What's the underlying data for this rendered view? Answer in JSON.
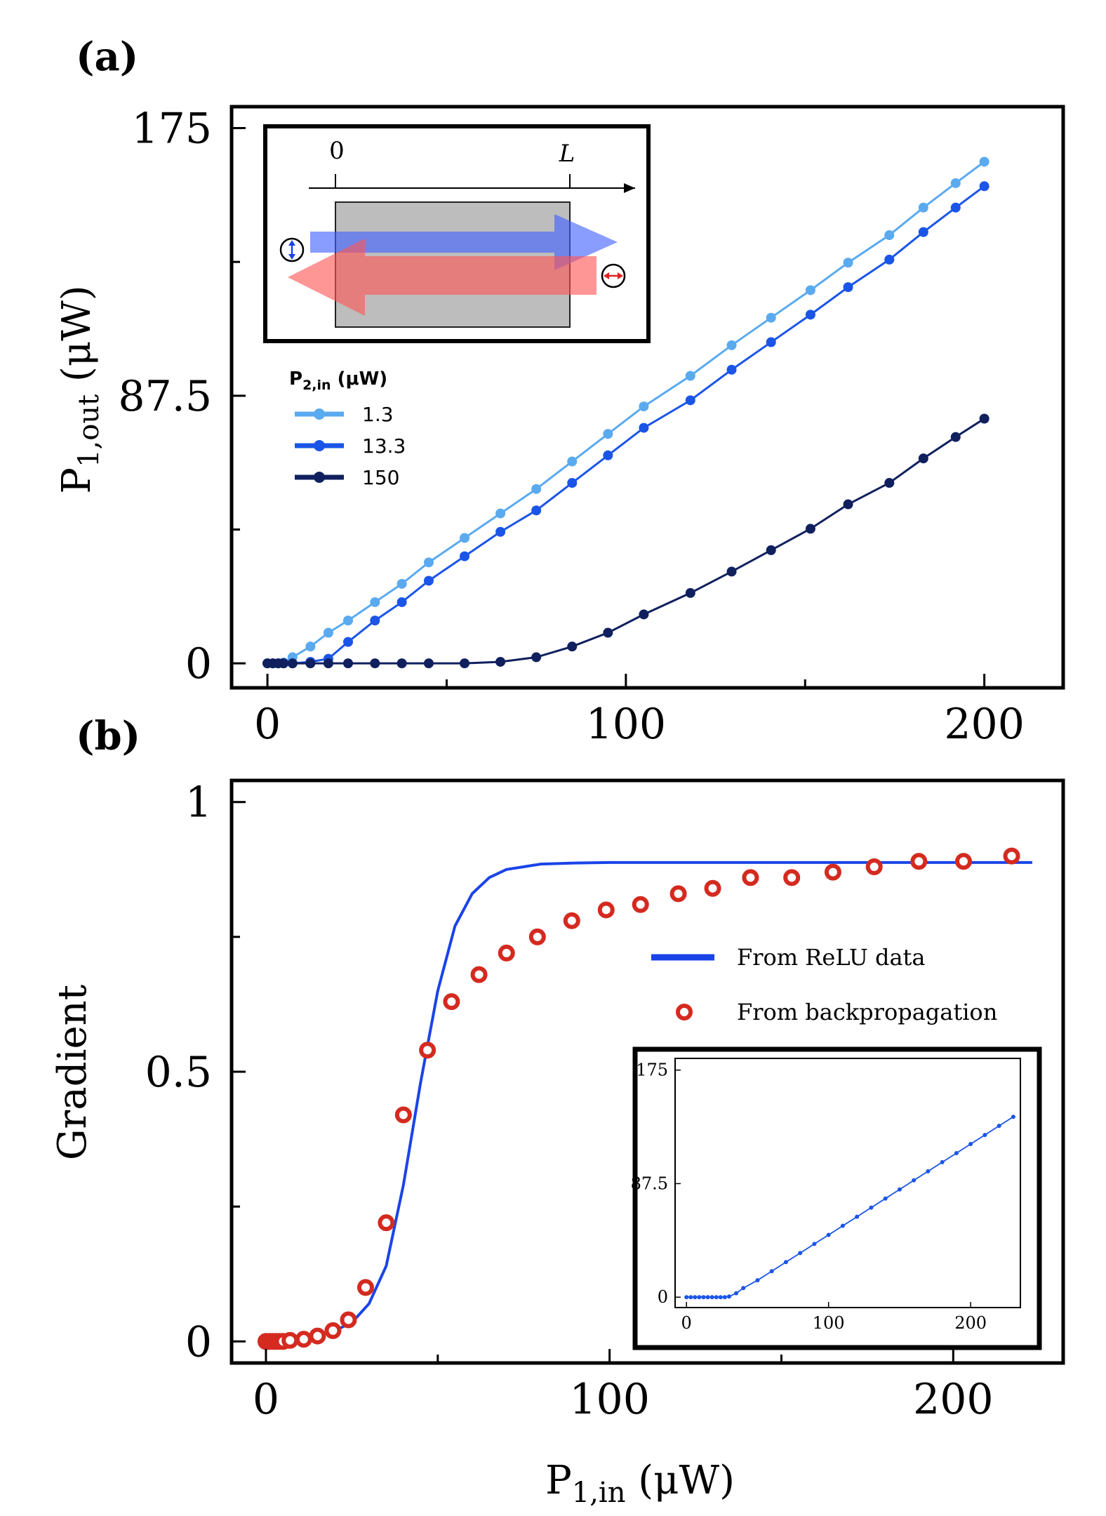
{
  "panel_a_label": "(a)",
  "panel_b_label": "(b)",
  "chart_data": [
    {
      "id": "a",
      "type": "line",
      "title": "",
      "xlabel": "",
      "ylabel": "P1,out (μW)",
      "ylabel_main": "P",
      "ylabel_sub": "1,out",
      "ylabel_unit": " (μW)",
      "xlim": [
        -10,
        222
      ],
      "ylim": [
        -8,
        182
      ],
      "xticks": [
        0,
        100,
        200
      ],
      "xtick_labels": [
        "0",
        "100",
        "200"
      ],
      "xminor": [
        50,
        150
      ],
      "yticks": [
        0,
        87.5,
        175
      ],
      "ytick_labels": [
        "0",
        "87.5",
        "175"
      ],
      "yminor": [
        43.75,
        131.25
      ],
      "legend_title_main": "P",
      "legend_title_sub": "2,in",
      "legend_title_unit": " (μW)",
      "series": [
        {
          "name": "1.3",
          "color": "#5aaaf0",
          "x": [
            0,
            1.5,
            3,
            4.5,
            7,
            12,
            17,
            22.5,
            30,
            37.5,
            45,
            55,
            65,
            75,
            85,
            95,
            105,
            118,
            129.5,
            140.5,
            151.5,
            162,
            173.5,
            183,
            192,
            200
          ],
          "y": [
            0,
            0,
            0,
            0.3,
            2,
            5.5,
            10,
            14,
            20,
            26,
            33,
            41,
            49,
            57,
            66,
            75,
            84,
            94,
            104,
            113,
            122,
            131,
            140,
            149,
            157,
            164
          ]
        },
        {
          "name": "13.3",
          "color": "#1a55e8",
          "x": [
            0,
            1.5,
            3,
            4.5,
            7,
            12,
            17,
            22.5,
            30,
            37.5,
            45,
            55,
            65,
            75,
            85,
            95,
            105,
            118,
            129.5,
            140.5,
            151.5,
            162,
            173.5,
            183,
            192,
            200
          ],
          "y": [
            0,
            0,
            0,
            0,
            0,
            0.5,
            1.5,
            7,
            14,
            20,
            27,
            35,
            43,
            50,
            59,
            68,
            77,
            86,
            96,
            105,
            114,
            123,
            132,
            141,
            149,
            156
          ]
        },
        {
          "name": "150",
          "color": "#10205e",
          "x": [
            0,
            1.5,
            3,
            4.5,
            7,
            12,
            17,
            22.5,
            30,
            37.5,
            45,
            55,
            65,
            75,
            85,
            95,
            105,
            118,
            129.5,
            140.5,
            151.5,
            162,
            173.5,
            183,
            192,
            200
          ],
          "y": [
            0,
            0,
            0,
            0,
            0,
            0,
            0,
            0,
            0,
            0,
            0,
            0,
            0.5,
            2,
            5.5,
            10,
            16,
            23,
            30,
            37,
            44,
            52,
            59,
            67,
            74,
            80
          ]
        }
      ],
      "inset": {
        "axis_label_0": "0",
        "axis_label_L": "L"
      }
    },
    {
      "id": "b",
      "type": "line",
      "title": "",
      "xlabel": "P1,in (μW)",
      "xlabel_main": "P",
      "xlabel_sub": "1,in",
      "xlabel_unit": " (μW)",
      "ylabel": "Gradient",
      "xlim": [
        -10,
        232
      ],
      "ylim": [
        -0.04,
        1.04
      ],
      "xticks": [
        0,
        100,
        200
      ],
      "xtick_labels": [
        "0",
        "100",
        "200"
      ],
      "xminor": [
        50,
        150
      ],
      "yticks": [
        0,
        0.5,
        1
      ],
      "ytick_labels": [
        "0",
        "0.5",
        "1"
      ],
      "yminor": [
        0.25,
        0.75
      ],
      "series": [
        {
          "name": "From ReLU data",
          "type": "line",
          "color": "#1a44e8",
          "x": [
            0,
            5,
            10,
            15,
            20,
            25,
            30,
            35,
            40,
            45,
            50,
            55,
            60,
            65,
            70,
            75,
            80,
            90,
            100,
            120,
            150,
            180,
            210,
            223
          ],
          "y": [
            0,
            0.002,
            0.005,
            0.01,
            0.02,
            0.035,
            0.07,
            0.14,
            0.29,
            0.48,
            0.65,
            0.77,
            0.83,
            0.86,
            0.875,
            0.88,
            0.885,
            0.887,
            0.888,
            0.888,
            0.888,
            0.888,
            0.888,
            0.888
          ]
        },
        {
          "name": "From backpropagation",
          "type": "scatter",
          "color": "#d42a20",
          "x": [
            0,
            1,
            2,
            3,
            4,
            5,
            7,
            11,
            15,
            19.5,
            24,
            29,
            35,
            40,
            47,
            54,
            62,
            70,
            79,
            89,
            99,
            109,
            120,
            130,
            141,
            153,
            165,
            177,
            190,
            203,
            217
          ],
          "y": [
            0,
            0,
            0,
            0,
            0,
            0,
            0.002,
            0.004,
            0.01,
            0.02,
            0.04,
            0.1,
            0.22,
            0.42,
            0.54,
            0.63,
            0.68,
            0.72,
            0.75,
            0.78,
            0.8,
            0.81,
            0.83,
            0.84,
            0.86,
            0.86,
            0.87,
            0.88,
            0.89,
            0.89,
            0.9
          ]
        }
      ],
      "legend": [
        "From ReLU data",
        "From backpropagation"
      ],
      "inset": {
        "type": "line",
        "color": "#1a55e8",
        "xlim": [
          -8,
          235
        ],
        "ylim": [
          -8,
          184
        ],
        "xticks": [
          0,
          100,
          200
        ],
        "xtick_labels": [
          "0",
          "100",
          "200"
        ],
        "yticks": [
          0,
          87.5,
          175
        ],
        "ytick_labels": [
          "0",
          "87.5",
          "175"
        ],
        "x": [
          0,
          3,
          6,
          9,
          12,
          15,
          18,
          21,
          24,
          27,
          30,
          35,
          40,
          50,
          60,
          70,
          80,
          90,
          100,
          110,
          120,
          130,
          140,
          150,
          160,
          170,
          180,
          190,
          200,
          210,
          220,
          230
        ],
        "y": [
          0,
          0,
          0,
          0,
          0,
          0,
          0,
          0,
          0,
          0,
          0.5,
          3,
          7,
          13,
          20,
          27,
          34,
          41,
          48,
          55,
          62,
          69,
          76,
          83,
          90,
          97,
          104,
          111,
          118,
          125,
          132,
          139
        ]
      }
    }
  ]
}
